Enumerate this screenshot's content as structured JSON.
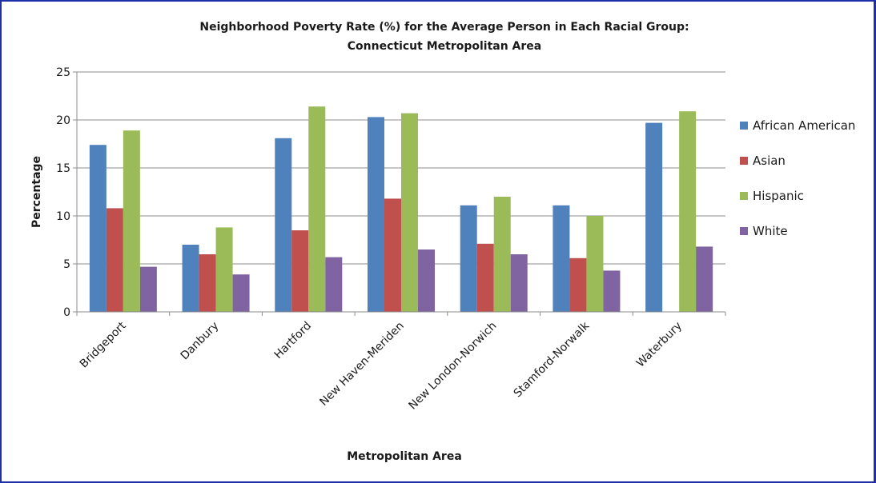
{
  "chart_data": {
    "type": "bar",
    "title": [
      "Neighborhood Poverty Rate (%) for the Average Person in Each Racial Group:",
      "Connecticut Metropolitan Area"
    ],
    "xlabel": "Metropolitan Area",
    "ylabel": "Percentage",
    "ylim": [
      0,
      25
    ],
    "yticks": [
      0,
      5,
      10,
      15,
      20,
      25
    ],
    "grid": true,
    "legend_position": "right",
    "categories": [
      "Bridgeport",
      "Danbury",
      "Hartford",
      "New Haven-Meriden",
      "New London-Norwich",
      "Stamford-Norwalk",
      "Waterbury"
    ],
    "series": [
      {
        "name": "African American",
        "color": "#4f81bd",
        "values": [
          17.4,
          7.0,
          18.1,
          20.3,
          11.1,
          11.1,
          19.7
        ]
      },
      {
        "name": "Asian",
        "color": "#c0504d",
        "values": [
          10.8,
          6.0,
          8.5,
          11.8,
          7.1,
          5.6,
          null
        ]
      },
      {
        "name": "Hispanic",
        "color": "#9bbb59",
        "values": [
          18.9,
          8.8,
          21.4,
          20.7,
          12.0,
          10.0,
          20.9
        ]
      },
      {
        "name": "White",
        "color": "#8064a2",
        "values": [
          4.7,
          3.9,
          5.7,
          6.5,
          6.0,
          4.3,
          6.8
        ]
      }
    ]
  }
}
